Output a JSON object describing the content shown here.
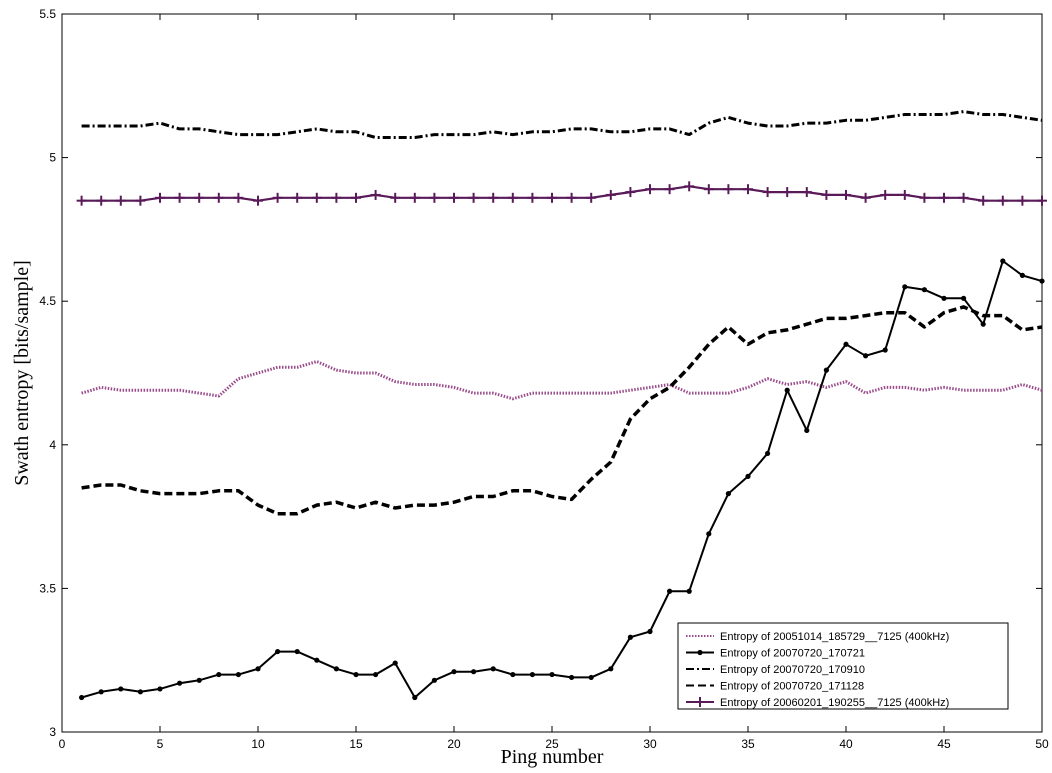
{
  "chart_data": {
    "type": "line",
    "xlabel": "Ping number",
    "ylabel": "Swath entropy [bits/sample]",
    "xlim": [
      0,
      50
    ],
    "ylim": [
      3,
      5.5
    ],
    "xticks": [
      "0",
      "5",
      "10",
      "15",
      "20",
      "25",
      "30",
      "35",
      "40",
      "45",
      "50"
    ],
    "yticks": [
      "3",
      "3.5",
      "4",
      "4.5",
      "5",
      "5.5"
    ],
    "grid": false,
    "legend_position": "bottom-right",
    "x": [
      1,
      2,
      3,
      4,
      5,
      6,
      7,
      8,
      9,
      10,
      11,
      12,
      13,
      14,
      15,
      16,
      17,
      18,
      19,
      20,
      21,
      22,
      23,
      24,
      25,
      26,
      27,
      28,
      29,
      30,
      31,
      32,
      33,
      34,
      35,
      36,
      37,
      38,
      39,
      40,
      41,
      42,
      43,
      44,
      45,
      46,
      47,
      48,
      49,
      50
    ],
    "series": [
      {
        "name": "Entropy of 20051014_185729__7125 (400kHz)",
        "style": "dotted",
        "color": "#9a4a8a",
        "values": [
          4.18,
          4.2,
          4.19,
          4.19,
          4.19,
          4.19,
          4.18,
          4.17,
          4.23,
          4.25,
          4.27,
          4.27,
          4.29,
          4.26,
          4.25,
          4.25,
          4.22,
          4.21,
          4.21,
          4.2,
          4.18,
          4.18,
          4.16,
          4.18,
          4.18,
          4.18,
          4.18,
          4.18,
          4.19,
          4.2,
          4.21,
          4.18,
          4.18,
          4.18,
          4.2,
          4.23,
          4.21,
          4.22,
          4.2,
          4.22,
          4.18,
          4.2,
          4.2,
          4.19,
          4.2,
          4.19,
          4.19,
          4.19,
          4.21,
          4.19
        ]
      },
      {
        "name": "Entropy of 20070720_170721",
        "style": "solid-dot",
        "color": "#000000",
        "values": [
          3.12,
          3.14,
          3.15,
          3.14,
          3.15,
          3.17,
          3.18,
          3.2,
          3.2,
          3.22,
          3.28,
          3.28,
          3.25,
          3.22,
          3.2,
          3.2,
          3.24,
          3.12,
          3.18,
          3.21,
          3.21,
          3.22,
          3.2,
          3.2,
          3.2,
          3.19,
          3.19,
          3.22,
          3.33,
          3.35,
          3.49,
          3.49,
          3.69,
          3.83,
          3.89,
          3.97,
          4.19,
          4.05,
          4.26,
          4.35,
          4.31,
          4.33,
          4.55,
          4.54,
          4.51,
          4.51,
          4.42,
          4.64,
          4.59,
          4.57
        ]
      },
      {
        "name": "Entropy of 20070720_170910",
        "style": "dash-dot",
        "color": "#000000",
        "values": [
          5.11,
          5.11,
          5.11,
          5.11,
          5.12,
          5.1,
          5.1,
          5.09,
          5.08,
          5.08,
          5.08,
          5.09,
          5.1,
          5.09,
          5.09,
          5.07,
          5.07,
          5.07,
          5.08,
          5.08,
          5.08,
          5.09,
          5.08,
          5.09,
          5.09,
          5.1,
          5.1,
          5.09,
          5.09,
          5.1,
          5.1,
          5.08,
          5.12,
          5.14,
          5.12,
          5.11,
          5.11,
          5.12,
          5.12,
          5.13,
          5.13,
          5.14,
          5.15,
          5.15,
          5.15,
          5.16,
          5.15,
          5.15,
          5.14,
          5.13
        ]
      },
      {
        "name": "Entropy of 20070720_171128",
        "style": "dashed",
        "color": "#000000",
        "values": [
          3.85,
          3.86,
          3.86,
          3.84,
          3.83,
          3.83,
          3.83,
          3.84,
          3.84,
          3.79,
          3.76,
          3.76,
          3.79,
          3.8,
          3.78,
          3.8,
          3.78,
          3.79,
          3.79,
          3.8,
          3.82,
          3.82,
          3.84,
          3.84,
          3.82,
          3.81,
          3.88,
          3.94,
          4.09,
          4.16,
          4.2,
          4.27,
          4.35,
          4.41,
          4.35,
          4.39,
          4.4,
          4.42,
          4.44,
          4.44,
          4.45,
          4.46,
          4.46,
          4.41,
          4.46,
          4.48,
          4.45,
          4.45,
          4.4,
          4.41
        ]
      },
      {
        "name": "Entropy of 20060201_190255__7125 (400kHz)",
        "style": "solid-plus",
        "color": "#5a1a5a",
        "values": [
          4.85,
          4.85,
          4.85,
          4.85,
          4.86,
          4.86,
          4.86,
          4.86,
          4.86,
          4.85,
          4.86,
          4.86,
          4.86,
          4.86,
          4.86,
          4.87,
          4.86,
          4.86,
          4.86,
          4.86,
          4.86,
          4.86,
          4.86,
          4.86,
          4.86,
          4.86,
          4.86,
          4.87,
          4.88,
          4.89,
          4.89,
          4.9,
          4.89,
          4.89,
          4.89,
          4.88,
          4.88,
          4.88,
          4.87,
          4.87,
          4.86,
          4.87,
          4.87,
          4.86,
          4.86,
          4.86,
          4.85,
          4.85,
          4.85,
          4.85
        ]
      }
    ]
  }
}
